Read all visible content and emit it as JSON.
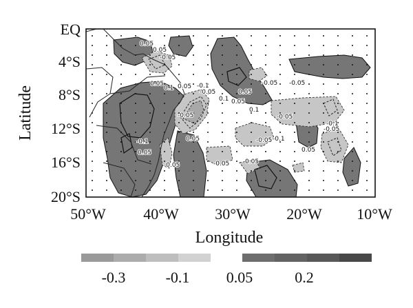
{
  "figure": {
    "xlabel": "Longitude",
    "ylabel": "Latitude"
  },
  "axes": {
    "x_ticks": [
      "50°W",
      "40°W",
      "30°W",
      "20°W",
      "10°W"
    ],
    "y_ticks": [
      "EQ",
      "4°S",
      "8°S",
      "12°S",
      "16°S",
      "20°S"
    ]
  },
  "contour_labels": {
    "pos_a": "0.05",
    "pos_b": "0.05",
    "pos_c": "0.05",
    "pos_d": "0.1",
    "pos_e": "0.05",
    "pos_f": "0.1",
    "pos_g": "0.05",
    "pos_h": "0.05",
    "pos_i": "0.1",
    "pos_j": "0.05",
    "pos_k": "0.05",
    "pos_l": "0.05",
    "pos_m": "0.05",
    "neg_a": "-0.05",
    "neg_b": "-0.1",
    "neg_c": "-0.05",
    "neg_d": "-0.05",
    "neg_e": "-0.05",
    "neg_f": "-0.05",
    "neg_g": "-0.1",
    "neg_h": "-0.05",
    "neg_i": "-0.05",
    "neg_j": "-0.1",
    "neg_k": "-0.05",
    "neg_l": "-0.1",
    "neg_m": "-0.05",
    "neg_n": "-0.05"
  },
  "colorbar": {
    "labels": [
      "-0.3",
      "-0.1",
      "0.05",
      "0.2"
    ],
    "negative_colors": [
      "#9a9a9a",
      "#acacac",
      "#bebebe",
      "#d2d2d2"
    ],
    "positive_colors": [
      "#6e6e6e",
      "#636363",
      "#585858",
      "#484848"
    ]
  },
  "shading": {
    "positive": "#767676",
    "negative": "#c6c6c6",
    "negative_strong": "#a8a8a8"
  }
}
